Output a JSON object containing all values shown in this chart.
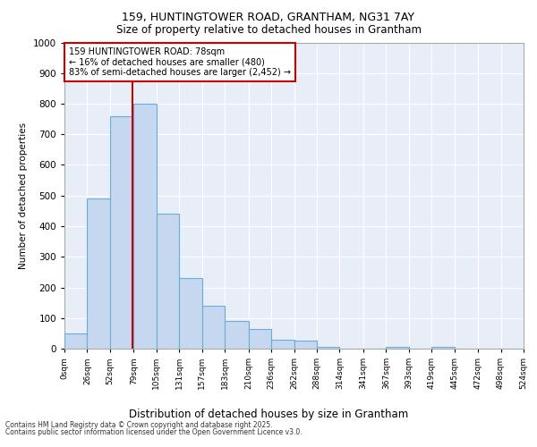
{
  "title_line1": "159, HUNTINGTOWER ROAD, GRANTHAM, NG31 7AY",
  "title_line2": "Size of property relative to detached houses in Grantham",
  "xlabel": "Distribution of detached houses by size in Grantham",
  "ylabel": "Number of detached properties",
  "bar_color": "#c5d8ef",
  "bar_edge_color": "#6aaed6",
  "bg_color": "#e8eef8",
  "grid_color": "#ffffff",
  "annotation_box_color": "#cc0000",
  "annotation_line_color": "#cc0000",
  "property_line_x": 78,
  "annotation_text": "159 HUNTINGTOWER ROAD: 78sqm\n← 16% of detached houses are smaller (480)\n83% of semi-detached houses are larger (2,452) →",
  "footnote1": "Contains HM Land Registry data © Crown copyright and database right 2025.",
  "footnote2": "Contains public sector information licensed under the Open Government Licence v3.0.",
  "bins": [
    0,
    26,
    52,
    79,
    105,
    131,
    157,
    183,
    210,
    236,
    262,
    288,
    314,
    341,
    367,
    393,
    419,
    445,
    472,
    498,
    524
  ],
  "counts": [
    50,
    490,
    760,
    800,
    440,
    230,
    140,
    90,
    65,
    30,
    25,
    5,
    0,
    0,
    5,
    0,
    5,
    0,
    0,
    0
  ],
  "ylim": [
    0,
    1000
  ],
  "yticks": [
    0,
    100,
    200,
    300,
    400,
    500,
    600,
    700,
    800,
    900,
    1000
  ]
}
